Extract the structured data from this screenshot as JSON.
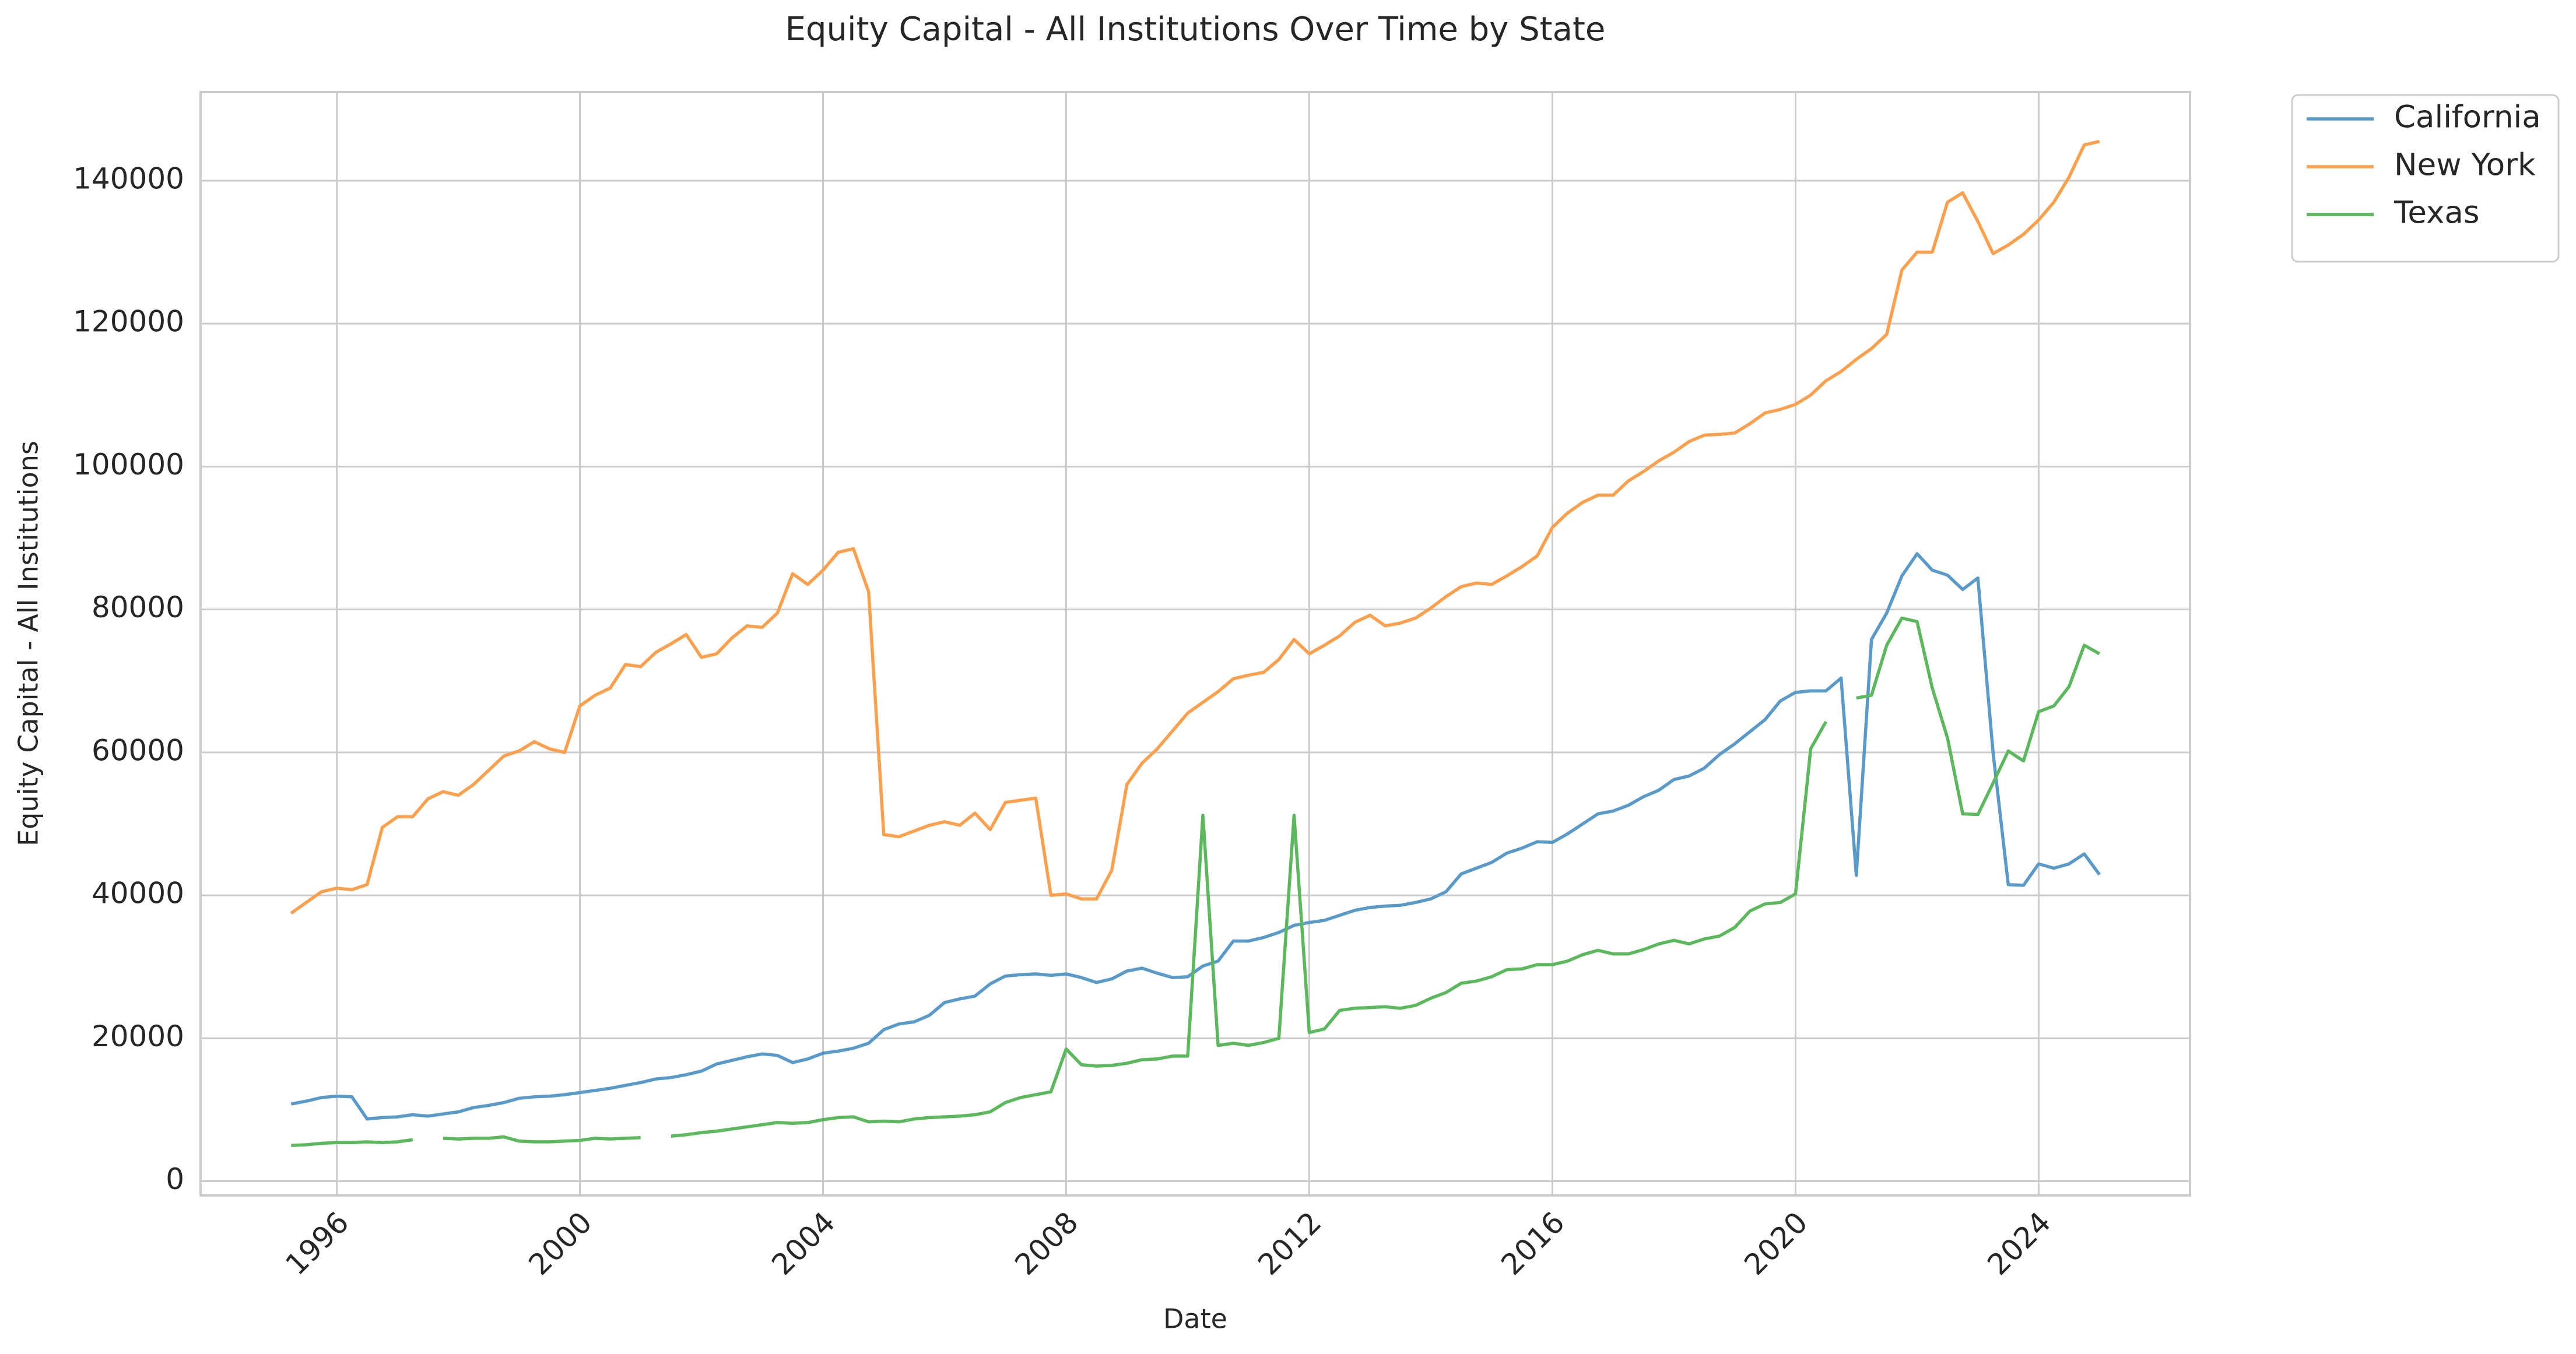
{
  "chart_data": {
    "type": "line",
    "title": "Equity Capital - All Institutions Over Time by State",
    "xlabel": "Date",
    "ylabel": "Equity Capital - All Institutions",
    "x": [
      1995.25,
      1995.5,
      1995.75,
      1996,
      1996.25,
      1996.5,
      1996.75,
      1997,
      1997.25,
      1997.5,
      1997.75,
      1998,
      1998.25,
      1998.5,
      1998.75,
      1999,
      1999.25,
      1999.5,
      1999.75,
      2000,
      2000.25,
      2000.5,
      2000.75,
      2001,
      2001.25,
      2001.5,
      2001.75,
      2002,
      2002.25,
      2002.5,
      2002.75,
      2003,
      2003.25,
      2003.5,
      2003.75,
      2004,
      2004.25,
      2004.5,
      2004.75,
      2005,
      2005.25,
      2005.5,
      2005.75,
      2006,
      2006.25,
      2006.5,
      2006.75,
      2007,
      2007.25,
      2007.5,
      2007.75,
      2008,
      2008.25,
      2008.5,
      2008.75,
      2009,
      2009.25,
      2009.5,
      2009.75,
      2010,
      2010.25,
      2010.5,
      2010.75,
      2011,
      2011.25,
      2011.5,
      2011.75,
      2012,
      2012.25,
      2012.5,
      2012.75,
      2013,
      2013.25,
      2013.5,
      2013.75,
      2014,
      2014.25,
      2014.5,
      2014.75,
      2015,
      2015.25,
      2015.5,
      2015.75,
      2016,
      2016.25,
      2016.5,
      2016.75,
      2017,
      2017.25,
      2017.5,
      2017.75,
      2018,
      2018.25,
      2018.5,
      2018.75,
      2019,
      2019.25,
      2019.5,
      2019.75,
      2020,
      2020.25,
      2020.5,
      2020.75,
      2021,
      2021.25,
      2021.5,
      2021.75,
      2022,
      2022.25,
      2022.5,
      2022.75,
      2023,
      2023.25,
      2023.5,
      2023.75,
      2024,
      2024.25,
      2024.5,
      2024.75,
      2025
    ],
    "series": [
      {
        "name": "California",
        "color": "#5a9ac9",
        "values": [
          10800,
          11200,
          11700,
          11900,
          11800,
          8700,
          8900,
          9000,
          9300,
          9100,
          9400,
          9700,
          10300,
          10600,
          11000,
          11600,
          11800,
          11900,
          12100,
          12400,
          12700,
          13000,
          13400,
          13800,
          14300,
          14500,
          14900,
          15400,
          16400,
          16900,
          17400,
          17800,
          17600,
          16600,
          17100,
          17900,
          18200,
          18600,
          19300,
          21200,
          22000,
          22300,
          23200,
          25000,
          25500,
          25900,
          27600,
          28700,
          28900,
          29000,
          28800,
          29000,
          28500,
          27800,
          28300,
          29400,
          29800,
          29100,
          28500,
          28600,
          30100,
          30800,
          33600,
          33600,
          34100,
          34800,
          35800,
          36200,
          36500,
          37200,
          37900,
          38300,
          38500,
          38600,
          39000,
          39500,
          40500,
          43000,
          43800,
          44600,
          45900,
          46600,
          47500,
          47400,
          48600,
          50000,
          51400,
          51800,
          52600,
          53800,
          54700,
          56200,
          56700,
          57800,
          59700,
          61200,
          62900,
          64600,
          67200,
          68400,
          68600,
          68600,
          70400,
          42800,
          75800,
          79500,
          84700,
          87800,
          85500,
          84800,
          82800,
          84400,
          60000,
          41500,
          41400,
          44400,
          43800,
          44400,
          45800,
          42900
        ]
      },
      {
        "name": "New York",
        "color": "#fda04d",
        "values": [
          37500,
          39000,
          40500,
          41000,
          40800,
          41500,
          49500,
          51000,
          51000,
          53500,
          54500,
          54000,
          55500,
          57500,
          59500,
          60200,
          61500,
          60500,
          60000,
          66500,
          68000,
          69000,
          72300,
          72000,
          74000,
          75200,
          76500,
          73300,
          73800,
          76000,
          77700,
          77500,
          79500,
          85000,
          83500,
          85500,
          88000,
          88500,
          82500,
          48500,
          48200,
          49000,
          49800,
          50300,
          49800,
          51500,
          49200,
          53000,
          53300,
          53600,
          40000,
          40200,
          39500,
          39500,
          43500,
          55500,
          58500,
          60500,
          63000,
          65500,
          67000,
          68500,
          70300,
          70800,
          71200,
          73000,
          75800,
          73800,
          75000,
          76300,
          78200,
          79200,
          77700,
          78100,
          78800,
          80200,
          81800,
          83200,
          83700,
          83500,
          84700,
          86000,
          87500,
          91500,
          93500,
          95000,
          96000,
          96000,
          98000,
          99300,
          100800,
          102000,
          103500,
          104400,
          104500,
          104700,
          106000,
          107500,
          108000,
          108700,
          110000,
          112000,
          113300,
          115000,
          116500,
          118500,
          127500,
          130000,
          130000,
          137000,
          138300,
          134300,
          129800,
          131000,
          132500,
          134500,
          137000,
          140500,
          145000,
          145500
        ]
      },
      {
        "name": "Texas",
        "color": "#5cb85c",
        "values": [
          5000,
          5100,
          5300,
          5400,
          5400,
          5500,
          5400,
          5500,
          5800,
          null,
          6000,
          5900,
          6000,
          6000,
          6200,
          5600,
          5500,
          5500,
          5600,
          5700,
          6000,
          5900,
          6000,
          6100,
          null,
          6300,
          6500,
          6800,
          7000,
          7300,
          7600,
          7900,
          8200,
          8100,
          8200,
          8600,
          8900,
          9000,
          8300,
          8400,
          8300,
          8700,
          8900,
          9000,
          9100,
          9300,
          9700,
          11000,
          11700,
          12100,
          12500,
          18500,
          16300,
          16100,
          16200,
          16500,
          17000,
          17100,
          17500,
          17500,
          51200,
          19000,
          19300,
          19000,
          19400,
          20000,
          51200,
          20800,
          21300,
          23900,
          24200,
          24300,
          24400,
          24200,
          24600,
          25600,
          26400,
          27700,
          28000,
          28600,
          29600,
          29700,
          30300,
          30300,
          30800,
          31700,
          32300,
          31800,
          31800,
          32400,
          33200,
          33700,
          33200,
          33900,
          34300,
          35500,
          37800,
          38800,
          39000,
          40200,
          60500,
          64300,
          null,
          67600,
          68000,
          75000,
          78800,
          78300,
          69000,
          62000,
          51400,
          51300,
          55700,
          60200,
          58800,
          65700,
          66500,
          69200,
          75000,
          73800
        ]
      }
    ],
    "xlim": [
      1993.76,
      2026.49
    ],
    "ylim": [
      -2000,
      152400
    ],
    "xticks": [
      1996,
      2000,
      2004,
      2008,
      2012,
      2016,
      2020,
      2024
    ],
    "yticks": [
      0,
      20000,
      40000,
      60000,
      80000,
      100000,
      120000,
      140000
    ],
    "grid": true,
    "legend": "outside-upper-right"
  }
}
